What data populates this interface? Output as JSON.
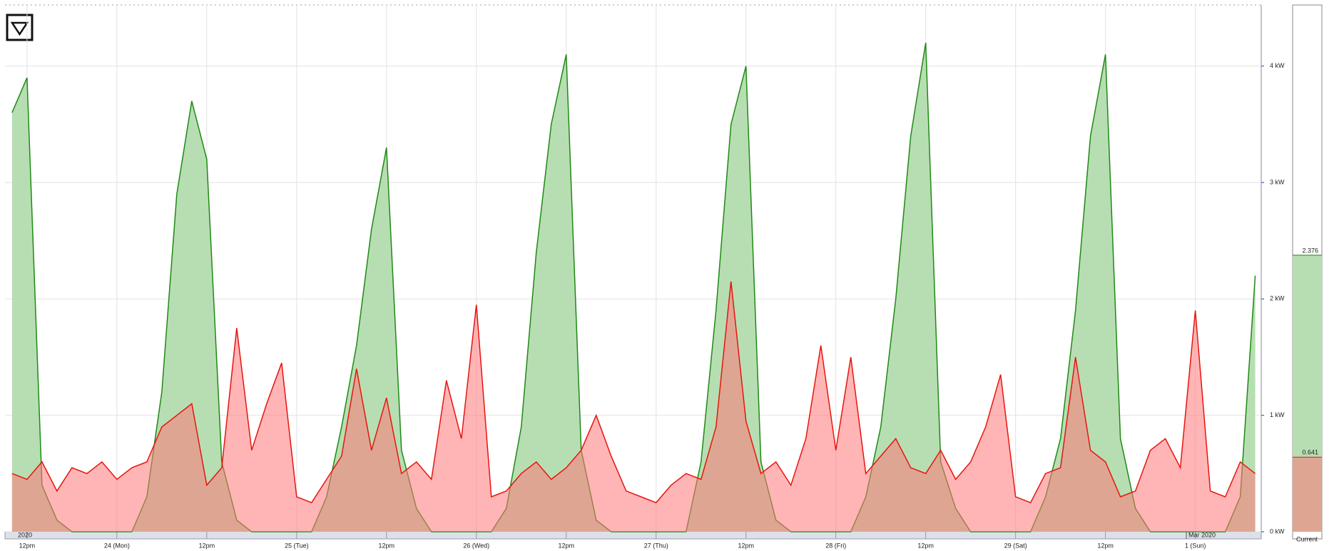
{
  "chart_data": {
    "type": "area",
    "xlim": [
      9.06,
      176.8
    ],
    "xticks": [
      {
        "value": 12,
        "label": "12pm"
      },
      {
        "value": 24,
        "label": "24 (Mon)"
      },
      {
        "value": 36,
        "label": "12pm"
      },
      {
        "value": 48,
        "label": "25 (Tue)"
      },
      {
        "value": 60,
        "label": "12pm"
      },
      {
        "value": 72,
        "label": "26 (Wed)"
      },
      {
        "value": 84,
        "label": "12pm"
      },
      {
        "value": 96,
        "label": "27 (Thu)"
      },
      {
        "value": 108,
        "label": "12pm"
      },
      {
        "value": 120,
        "label": "28 (Fri)"
      },
      {
        "value": 132,
        "label": "12pm"
      },
      {
        "value": 144,
        "label": "29 (Sat)"
      },
      {
        "value": 156,
        "label": "12pm"
      },
      {
        "value": 168,
        "label": "1 (Sun)"
      }
    ],
    "ylim": [
      0,
      4.525
    ],
    "yticks": [
      {
        "value": 0,
        "label": "0 kW"
      },
      {
        "value": 1,
        "label": "1 kW"
      },
      {
        "value": 2,
        "label": "2 kW"
      },
      {
        "value": 3,
        "label": "3 kW"
      },
      {
        "value": 4,
        "label": "4 kW"
      }
    ],
    "grid": true,
    "period_labels": [
      "2020",
      "Mar 2020"
    ],
    "x": [
      10,
      12,
      14,
      16,
      18,
      20,
      22,
      24,
      26,
      28,
      30,
      32,
      34,
      36,
      38,
      40,
      42,
      44,
      46,
      48,
      50,
      52,
      54,
      56,
      58,
      60,
      62,
      64,
      66,
      68,
      70,
      72,
      74,
      76,
      78,
      80,
      82,
      84,
      86,
      88,
      90,
      92,
      94,
      96,
      98,
      100,
      102,
      104,
      106,
      108,
      110,
      112,
      114,
      116,
      118,
      120,
      122,
      124,
      126,
      128,
      130,
      132,
      134,
      136,
      138,
      140,
      142,
      144,
      146,
      148,
      150,
      152,
      154,
      156,
      158,
      160,
      162,
      164,
      166,
      168,
      170,
      172,
      174,
      176
    ],
    "series": [
      {
        "color": "#1e8a14",
        "fill": "#b7deb2",
        "values": [
          3.6,
          3.9,
          0.4,
          0.1,
          0,
          0,
          0,
          0,
          0,
          0.3,
          1.2,
          2.9,
          3.7,
          3.2,
          0.6,
          0.1,
          0,
          0,
          0,
          0,
          0,
          0.3,
          0.9,
          1.6,
          2.6,
          3.3,
          0.7,
          0.2,
          0,
          0,
          0,
          0,
          0,
          0.2,
          0.9,
          2.4,
          3.5,
          4.1,
          0.7,
          0.1,
          0,
          0,
          0,
          0,
          0,
          0,
          0.6,
          1.9,
          3.5,
          4.0,
          0.6,
          0.1,
          0,
          0,
          0,
          0,
          0,
          0.3,
          0.9,
          2.0,
          3.4,
          4.2,
          0.6,
          0.2,
          0,
          0,
          0,
          0,
          0,
          0.3,
          0.8,
          1.9,
          3.4,
          4.1,
          0.8,
          0.2,
          0,
          0,
          0,
          0,
          0,
          0,
          0.3,
          2.2
        ]
      },
      {
        "color": "#e8140f",
        "fill": "rgba(255,120,120,0.55)",
        "values": [
          0.5,
          0.45,
          0.6,
          0.35,
          0.55,
          0.5,
          0.6,
          0.45,
          0.55,
          0.6,
          0.9,
          1.0,
          1.1,
          0.4,
          0.55,
          1.75,
          0.7,
          1.1,
          1.45,
          0.3,
          0.25,
          0.45,
          0.65,
          1.4,
          0.7,
          1.15,
          0.5,
          0.6,
          0.45,
          1.3,
          0.8,
          1.95,
          0.3,
          0.35,
          0.5,
          0.6,
          0.45,
          0.55,
          0.7,
          1.0,
          0.65,
          0.35,
          0.3,
          0.25,
          0.4,
          0.5,
          0.45,
          0.9,
          2.15,
          0.95,
          0.5,
          0.6,
          0.4,
          0.8,
          1.6,
          0.7,
          1.5,
          0.5,
          0.65,
          0.8,
          0.55,
          0.5,
          0.7,
          0.45,
          0.6,
          0.9,
          1.35,
          0.3,
          0.25,
          0.5,
          0.55,
          1.5,
          0.7,
          0.6,
          0.3,
          0.35,
          0.7,
          0.8,
          0.55,
          1.9,
          0.35,
          0.3,
          0.6,
          0.5
        ]
      }
    ],
    "current": {
      "label": "Current",
      "values": [
        2.376,
        0.641
      ]
    }
  }
}
